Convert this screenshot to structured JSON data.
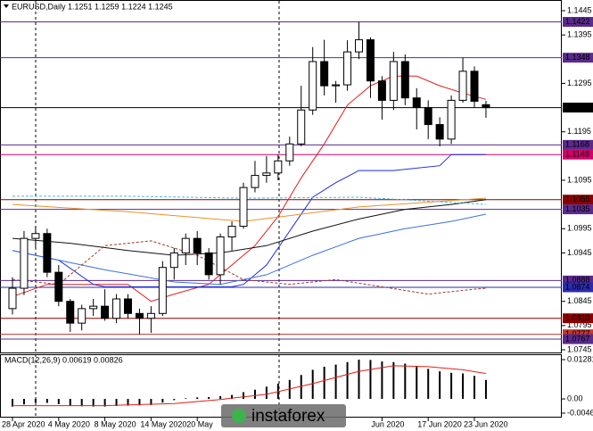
{
  "chart_data": [
    {
      "type": "candlestick",
      "title": "EURUSD,Daily  1.1251 1.1259 1.1224 1.1245",
      "categories": [
        "28 Apr 2020",
        null,
        null,
        null,
        "4 May 2020",
        null,
        null,
        null,
        "8 May 2020",
        null,
        null,
        null,
        "14 May 2020",
        null,
        null,
        null,
        "20 May",
        null,
        null,
        null,
        null,
        null,
        null,
        null,
        null,
        null,
        null,
        null,
        null,
        null,
        null,
        null,
        "Jun 2020",
        null,
        null,
        null,
        "17 Jun 2020",
        null,
        null,
        null,
        "23 Jun 2020",
        null
      ],
      "open": [
        1.083,
        1.0872,
        1.0975,
        1.0985,
        1.0905,
        1.0845,
        1.08,
        1.083,
        1.0835,
        1.081,
        1.085,
        1.082,
        1.081,
        1.082,
        1.0915,
        1.0945,
        1.0975,
        1.0945,
        1.09,
        1.0978,
        1.1,
        1.108,
        1.1105,
        1.111,
        1.1135,
        1.117,
        1.124,
        1.134,
        1.129,
        1.1292,
        1.136,
        1.1385,
        1.13,
        1.126,
        1.134,
        1.1265,
        1.1245,
        1.121,
        1.118,
        1.126,
        1.132,
        1.1251
      ],
      "high": [
        1.0895,
        1.099,
        1.1,
        1.0995,
        1.092,
        1.085,
        1.0838,
        1.085,
        1.087,
        1.086,
        1.086,
        1.083,
        1.0835,
        1.0928,
        1.0955,
        1.0985,
        1.099,
        1.0955,
        1.0985,
        1.101,
        1.109,
        1.1135,
        1.1145,
        1.1148,
        1.1185,
        1.129,
        1.137,
        1.1385,
        1.13,
        1.1384,
        1.1422,
        1.139,
        1.131,
        1.136,
        1.1355,
        1.1285,
        1.126,
        1.1225,
        1.127,
        1.1348,
        1.133,
        1.1259
      ],
      "low": [
        1.0818,
        1.0858,
        1.0955,
        1.0895,
        1.0835,
        1.0782,
        1.0785,
        1.0815,
        1.0805,
        1.08,
        1.081,
        1.0777,
        1.078,
        1.0815,
        1.089,
        1.092,
        1.092,
        1.089,
        1.088,
        1.095,
        1.0995,
        1.107,
        1.109,
        1.1095,
        1.1125,
        1.1165,
        1.123,
        1.127,
        1.1255,
        1.128,
        1.1345,
        1.1265,
        1.122,
        1.124,
        1.125,
        1.12,
        1.118,
        1.1165,
        1.117,
        1.1255,
        1.1245,
        1.1224
      ],
      "close": [
        1.0872,
        1.0975,
        1.0985,
        1.0905,
        1.0845,
        1.08,
        1.083,
        1.0835,
        1.081,
        1.085,
        1.082,
        1.081,
        1.082,
        1.0915,
        1.0945,
        1.0975,
        1.0945,
        1.09,
        1.0978,
        1.1,
        1.108,
        1.1105,
        1.111,
        1.1135,
        1.117,
        1.124,
        1.134,
        1.129,
        1.1292,
        1.136,
        1.1385,
        1.13,
        1.126,
        1.134,
        1.1265,
        1.1245,
        1.121,
        1.118,
        1.126,
        1.132,
        1.1258,
        1.1245
      ],
      "ylim": [
        1.0745,
        1.1445
      ],
      "yticks": [
        1.0745,
        1.0795,
        1.0845,
        1.0945,
        1.0995,
        1.1095,
        1.1195,
        1.1295,
        1.1395,
        1.1445
      ],
      "levels": [
        {
          "value": 1.1422,
          "color": "#5a2a8c"
        },
        {
          "value": 1.1348,
          "color": "#5a2a8c"
        },
        {
          "value": 1.1245,
          "color": "#000000"
        },
        {
          "value": 1.1168,
          "color": "#5a2a8c"
        },
        {
          "value": 1.1148,
          "color": "#d1006a"
        },
        {
          "value": 1.1055,
          "color": "#8b0000"
        },
        {
          "value": 1.1035,
          "color": "#5a2a8c"
        },
        {
          "value": 1.0888,
          "color": "#5a2a8c"
        },
        {
          "value": 1.0874,
          "color": "#2b2bb0"
        },
        {
          "value": 1.081,
          "label": "1.0810",
          "color": "#8b0000"
        },
        {
          "value": 1.0777,
          "color": "#c0392b"
        },
        {
          "value": 1.0767,
          "color": "#5a2a8c"
        }
      ],
      "lines": [
        {
          "color": "#e0201b",
          "dash": false,
          "x": [
            0,
            3,
            6,
            10,
            12,
            14,
            17,
            19,
            21,
            23,
            25,
            27,
            29,
            31,
            33,
            35,
            37,
            39,
            41
          ],
          "values": [
            1.0855,
            1.088,
            1.088,
            1.088,
            1.0845,
            1.086,
            1.088,
            1.092,
            1.096,
            1.102,
            1.11,
            1.117,
            1.125,
            1.129,
            1.131,
            1.131,
            1.129,
            1.1275,
            1.1262
          ]
        },
        {
          "color": "#1b2be0",
          "dash": false,
          "x": [
            0,
            4,
            7,
            8,
            19,
            20,
            22,
            24,
            26,
            28,
            30,
            33,
            37,
            38,
            41
          ],
          "values": [
            1.095,
            1.093,
            1.088,
            1.0875,
            1.0875,
            1.088,
            1.092,
            1.099,
            1.106,
            1.109,
            1.1115,
            1.1115,
            1.1125,
            1.1148,
            1.1148
          ]
        },
        {
          "color": "#111111",
          "dash": false,
          "x": [
            0,
            5,
            10,
            14,
            18,
            22,
            26,
            30,
            34,
            38,
            41
          ],
          "values": [
            1.0975,
            1.0965,
            1.095,
            1.094,
            1.0945,
            1.096,
            1.099,
            1.1015,
            1.1035,
            1.1045,
            1.1055
          ]
        },
        {
          "color": "#e8922a",
          "dash": false,
          "x": [
            0,
            10,
            20,
            30,
            41
          ],
          "values": [
            1.1045,
            1.103,
            1.101,
            1.104,
            1.1058
          ]
        },
        {
          "color": "#3d6fe0",
          "dash": false,
          "x": [
            0,
            8,
            14,
            18,
            22,
            26,
            30,
            34,
            38,
            41
          ],
          "values": [
            1.095,
            1.091,
            1.0885,
            1.088,
            1.09,
            1.094,
            1.0975,
            1.0995,
            1.101,
            1.1025
          ]
        },
        {
          "color": "#9a3a2a",
          "dash": true,
          "x": [
            0,
            4,
            8,
            12,
            16,
            20,
            24,
            28,
            32,
            36,
            40,
            41
          ],
          "values": [
            1.089,
            1.088,
            1.096,
            1.097,
            1.094,
            1.089,
            1.088,
            1.089,
            1.0875,
            1.086,
            1.087,
            1.0872
          ]
        },
        {
          "color": "#4ab8e8",
          "dash": true,
          "x": [
            0,
            10,
            20,
            30,
            41
          ],
          "values": [
            1.1062,
            1.1062,
            1.1058,
            1.106,
            1.1045
          ]
        }
      ]
    },
    {
      "type": "macd",
      "title": "MACD(12,26,9) 0.00619 0.00826",
      "values": [
        -0.0025,
        -0.0018,
        -0.0012,
        -0.0013,
        -0.0017,
        -0.0022,
        -0.0024,
        -0.0025,
        -0.0025,
        -0.0023,
        -0.0022,
        -0.0021,
        -0.002,
        -0.0012,
        -0.0004,
        0.0002,
        0.0005,
        0.0006,
        0.0009,
        0.0013,
        0.0022,
        0.003,
        0.004,
        0.005,
        0.0062,
        0.0078,
        0.0095,
        0.0105,
        0.0112,
        0.012,
        0.0128,
        0.0127,
        0.0122,
        0.012,
        0.0115,
        0.0108,
        0.0098,
        0.009,
        0.0085,
        0.0083,
        0.0075,
        0.00619
      ],
      "signal": {
        "color": "#e0201b",
        "x": [
          0,
          8,
          14,
          18,
          22,
          26,
          30,
          33,
          36,
          39,
          41
        ],
        "values": [
          -0.0022,
          -0.0022,
          -0.0015,
          -0.0002,
          0.0015,
          0.005,
          0.009,
          0.0108,
          0.0105,
          0.0095,
          0.00826
        ]
      },
      "ylim": [
        -0.00464,
        0.01281
      ],
      "yticks": [
        -0.00464,
        {
          "value": 0,
          "label": "0.00"
        },
        0.01281
      ]
    },
    {
      "watermark": "instaforex"
    }
  ]
}
